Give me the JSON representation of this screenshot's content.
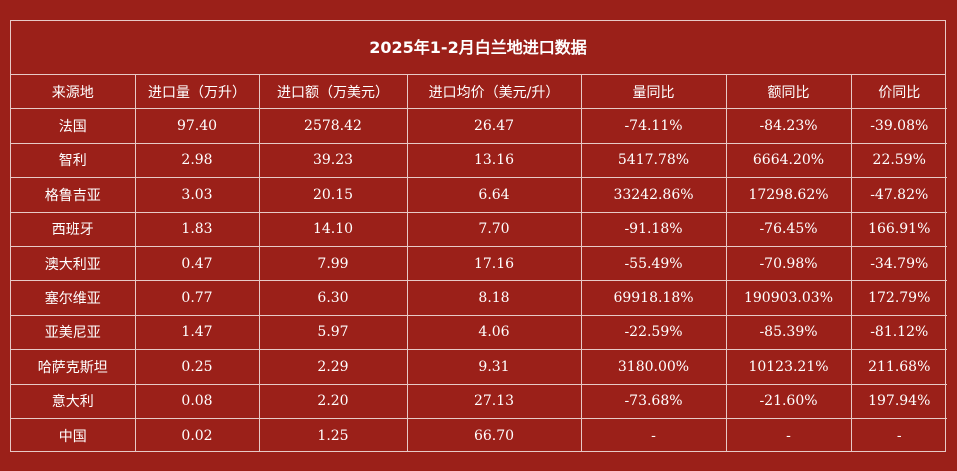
{
  "title": "2025年1-2月白兰地进口数据",
  "headers": [
    "来源地",
    "进口量（万升）",
    "进口额（万美元）",
    "进口均价（美元/升）",
    "量同比",
    "额同比",
    "价同比"
  ],
  "rows": [
    [
      "法国",
      "97.40",
      "2578.42",
      "26.47",
      "-74.11%",
      "-84.23%",
      "-39.08%"
    ],
    [
      "智利",
      "2.98",
      "39.23",
      "13.16",
      "5417.78%",
      "6664.20%",
      "22.59%"
    ],
    [
      "格鲁吉亚",
      "3.03",
      "20.15",
      "6.64",
      "33242.86%",
      "17298.62%",
      "-47.82%"
    ],
    [
      "西班牙",
      "1.83",
      "14.10",
      "7.70",
      "-91.18%",
      "-76.45%",
      "166.91%"
    ],
    [
      "澳大利亚",
      "0.47",
      "7.99",
      "17.16",
      "-55.49%",
      "-70.98%",
      "-34.79%"
    ],
    [
      "塞尔维亚",
      "0.77",
      "6.30",
      "8.18",
      "69918.18%",
      "190903.03%",
      "172.79%"
    ],
    [
      "亚美尼亚",
      "1.47",
      "5.97",
      "4.06",
      "-22.59%",
      "-85.39%",
      "-81.12%"
    ],
    [
      "哈萨克斯坦",
      "0.25",
      "2.29",
      "9.31",
      "3180.00%",
      "10123.21%",
      "211.68%"
    ],
    [
      "意大利",
      "0.08",
      "2.20",
      "27.13",
      "-73.68%",
      "-21.60%",
      "197.94%"
    ],
    [
      "中国",
      "0.02",
      "1.25",
      "66.70",
      "-",
      "-",
      "-"
    ]
  ],
  "colors": {
    "background": "#9b2019",
    "border": "#e8c9c6",
    "text": "#ffffff"
  }
}
